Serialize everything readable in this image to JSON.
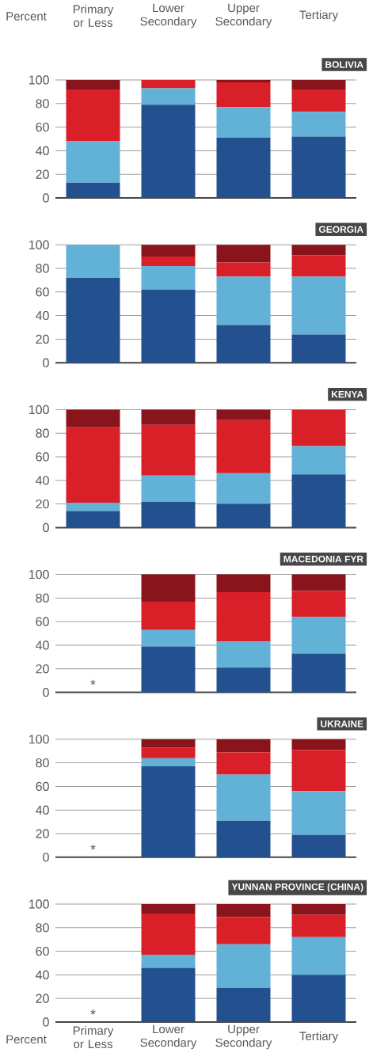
{
  "chart_data": [
    {
      "type": "bar",
      "stacked": true,
      "title": "BOLIVIA",
      "ylabel": "Percent",
      "categories": [
        "Primary or Less",
        "Lower Secondary",
        "Upper Secondary",
        "Tertiary"
      ],
      "series": [
        {
          "color": "#23518f",
          "values": [
            13,
            79,
            51,
            52
          ]
        },
        {
          "color": "#62b1d7",
          "values": [
            35,
            14,
            26,
            21
          ]
        },
        {
          "color": "#d91f28",
          "values": [
            44,
            7,
            21,
            19
          ]
        },
        {
          "color": "#8a141b",
          "values": [
            8,
            0,
            2,
            8
          ]
        }
      ],
      "ylim": [
        0,
        100
      ],
      "yticks": [
        0,
        20,
        40,
        60,
        80,
        100
      ],
      "grid": "y"
    },
    {
      "type": "bar",
      "stacked": true,
      "title": "GEORGIA",
      "categories": [
        null,
        null,
        null,
        null
      ],
      "series": [
        {
          "color": "#23518f",
          "values": [
            72,
            62,
            32,
            24
          ]
        },
        {
          "color": "#62b1d7",
          "values": [
            28,
            20,
            41,
            49
          ]
        },
        {
          "color": "#d91f28",
          "values": [
            0,
            8,
            12,
            18
          ]
        },
        {
          "color": "#8a141b",
          "values": [
            0,
            10,
            15,
            9
          ]
        }
      ],
      "ylim": [
        0,
        100
      ],
      "yticks": [
        0,
        20,
        40,
        60,
        80,
        100
      ],
      "grid": "y",
      "tick_labels": "y"
    },
    {
      "type": "bar",
      "stacked": true,
      "title": "KENYA",
      "categories": [
        null,
        null,
        null,
        null
      ],
      "series": [
        {
          "color": "#23518f",
          "values": [
            14,
            22,
            20,
            45
          ]
        },
        {
          "color": "#62b1d7",
          "values": [
            7,
            22,
            26,
            24
          ]
        },
        {
          "color": "#d91f28",
          "values": [
            64,
            43,
            45,
            31
          ]
        },
        {
          "color": "#8a141b",
          "values": [
            15,
            13,
            9,
            0
          ]
        }
      ],
      "ylim": [
        0,
        100
      ],
      "yticks": [
        0,
        20,
        40,
        60,
        80,
        100
      ],
      "grid": "y",
      "tick_labels": "y"
    },
    {
      "type": "bar",
      "stacked": true,
      "title": "MACEDONIA FYR",
      "categories": [
        null,
        null,
        null,
        null
      ],
      "series": [
        {
          "color": "#23518f",
          "values": [
            null,
            39,
            21,
            33
          ]
        },
        {
          "color": "#62b1d7",
          "values": [
            null,
            14,
            22,
            31
          ]
        },
        {
          "color": "#d91f28",
          "values": [
            null,
            24,
            42,
            22
          ]
        },
        {
          "color": "#8a141b",
          "values": [
            null,
            23,
            15,
            14
          ]
        }
      ],
      "ylim": [
        0,
        100
      ],
      "yticks": [
        0,
        20,
        40,
        60,
        80,
        100
      ],
      "grid": "y",
      "tick_labels": "y",
      "annotations": [
        "*"
      ]
    },
    {
      "type": "bar",
      "stacked": true,
      "title": "UKRAINE",
      "categories": [
        null,
        null,
        null,
        null
      ],
      "series": [
        {
          "color": "#23518f",
          "values": [
            null,
            77,
            31,
            19
          ]
        },
        {
          "color": "#62b1d7",
          "values": [
            null,
            7,
            39,
            37
          ]
        },
        {
          "color": "#d91f28",
          "values": [
            null,
            9,
            19,
            35
          ]
        },
        {
          "color": "#8a141b",
          "values": [
            null,
            7,
            11,
            9
          ]
        }
      ],
      "ylim": [
        0,
        100
      ],
      "yticks": [
        0,
        20,
        40,
        60,
        80,
        100
      ],
      "grid": "y",
      "tick_labels": "y",
      "annotations": [
        "*"
      ]
    },
    {
      "type": "bar",
      "stacked": true,
      "title": "YUNNAN PROVINCE (CHINA)",
      "ylabel": "Percent",
      "categories": [
        "Primary or Less",
        "Lower Secondary",
        "Upper Secondary",
        "Tertiary"
      ],
      "series": [
        {
          "color": "#23518f",
          "values": [
            null,
            46,
            29,
            40
          ]
        },
        {
          "color": "#62b1d7",
          "values": [
            null,
            11,
            37,
            32
          ]
        },
        {
          "color": "#d91f28",
          "values": [
            null,
            35,
            23,
            19
          ]
        },
        {
          "color": "#8a141b",
          "values": [
            null,
            8,
            11,
            9
          ]
        }
      ],
      "ylim": [
        0,
        100
      ],
      "yticks": [
        0,
        20,
        40,
        60,
        80,
        100
      ],
      "grid": "y",
      "annotations": [
        "*"
      ]
    }
  ]
}
